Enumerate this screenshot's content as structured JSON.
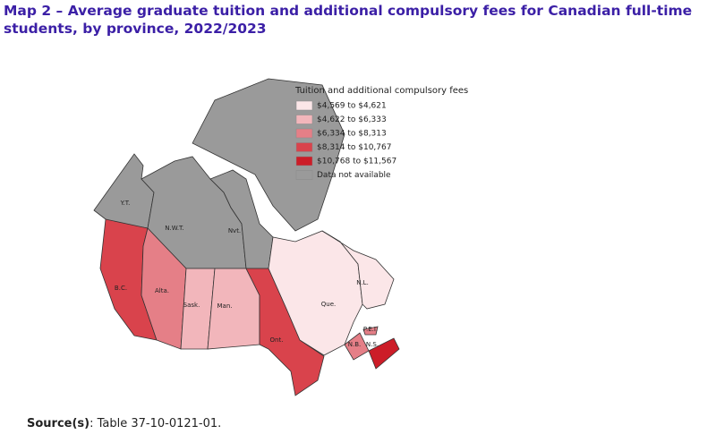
{
  "title": "Map 2 –  Average graduate tuition and additional compulsory fees for Canadian full-time students, by province, 2022/2023",
  "legend": {
    "title": "Tuition and additional compulsory fees",
    "items": [
      {
        "label": "$4,569 to $4,621",
        "color": "#fbe6e8"
      },
      {
        "label": "$4,622 to $6,333",
        "color": "#f2b6bb"
      },
      {
        "label": "$6,334 to $8,313",
        "color": "#e57f87"
      },
      {
        "label": "$8,314 to $10,767",
        "color": "#d9434c"
      },
      {
        "label": "$10,768 to $11,567",
        "color": "#cc1d28"
      },
      {
        "label": "Data not available",
        "color": "#9a9a9a"
      }
    ]
  },
  "regions": [
    {
      "label": "Y.T.",
      "color": "#9a9a9a"
    },
    {
      "label": "N.W.T.",
      "color": "#9a9a9a"
    },
    {
      "label": "Nvt.",
      "color": "#9a9a9a"
    },
    {
      "label": "B.C.",
      "color": "#d9434c"
    },
    {
      "label": "Alta.",
      "color": "#e57f87"
    },
    {
      "label": "Sask.",
      "color": "#f2b6bb"
    },
    {
      "label": "Man.",
      "color": "#f2b6bb"
    },
    {
      "label": "Ont.",
      "color": "#d9434c"
    },
    {
      "label": "Que.",
      "color": "#fbe6e8"
    },
    {
      "label": "N.L.",
      "color": "#fbe6e8"
    },
    {
      "label": "P.E.I.",
      "color": "#e57f87"
    },
    {
      "label": "N.B.",
      "color": "#e57f87"
    },
    {
      "label": "N.S.",
      "color": "#cc1d28"
    }
  ],
  "source": {
    "label": "Source(s)",
    "text": ": Table 37-10-0121-01."
  }
}
